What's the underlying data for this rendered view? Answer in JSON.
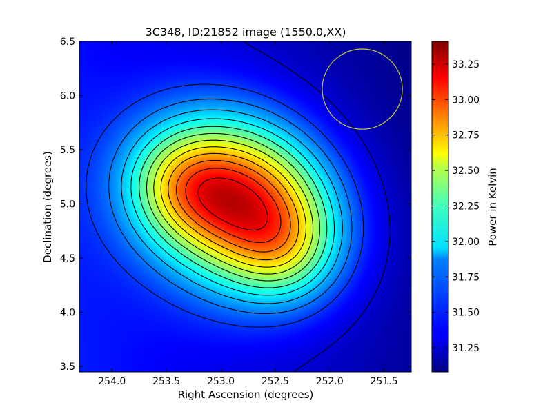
{
  "chart_data": {
    "type": "heatmap",
    "title": "3C348, ID:21852 image (1550.0,XX)",
    "xlabel": "Right Ascension (degrees)",
    "ylabel": "Declination (degrees)",
    "xlim": [
      254.3,
      251.25
    ],
    "ylim": [
      3.45,
      6.5
    ],
    "x_axis_inverted": true,
    "x_ticks": [
      "254.0",
      "253.5",
      "253.0",
      "252.5",
      "252.0",
      "251.5"
    ],
    "x_tick_values": [
      254.0,
      253.5,
      253.0,
      252.5,
      252.0,
      251.5
    ],
    "y_ticks": [
      "3.5",
      "4.0",
      "4.5",
      "5.0",
      "5.5",
      "6.0",
      "6.5"
    ],
    "y_tick_values": [
      3.5,
      4.0,
      4.5,
      5.0,
      5.5,
      6.0,
      6.5
    ],
    "colormap": "jet",
    "colorbar": {
      "label": "Power in Kelvin",
      "range": [
        31.08,
        33.41
      ],
      "ticks": [
        "31.25",
        "31.50",
        "31.75",
        "32.00",
        "32.25",
        "32.50",
        "32.75",
        "33.00",
        "33.25"
      ],
      "tick_values": [
        31.25,
        31.5,
        31.75,
        32.0,
        32.25,
        32.5,
        32.75,
        33.0,
        33.25
      ]
    },
    "peak": {
      "ra": 252.78,
      "dec": 4.99,
      "value": 33.4
    },
    "contour_count": 13,
    "beam_circle": {
      "ra": 251.7,
      "dec": 6.06,
      "radius_deg": 0.37,
      "color": "#cccc33"
    },
    "grid": false,
    "legend": "none"
  },
  "colors": {
    "contour": "#000000",
    "beam": "#cccc33"
  }
}
